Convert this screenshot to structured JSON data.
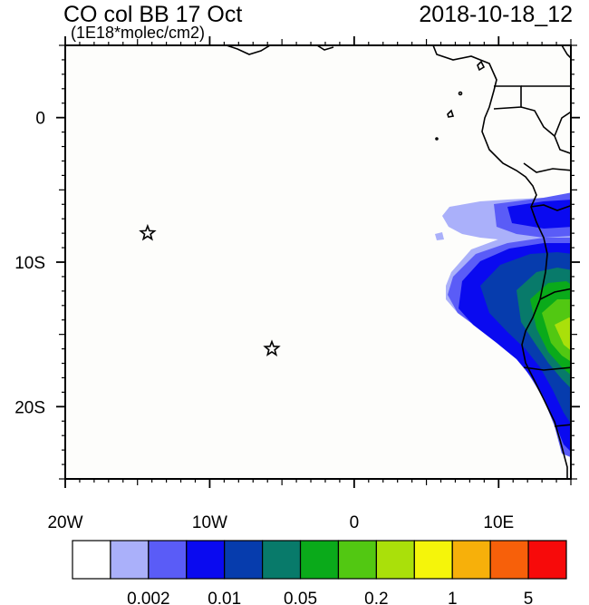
{
  "header": {
    "title": "CO col BB 17 Oct",
    "units": "(1E18*molec/cm2)",
    "timestamp": "2018-10-18_12"
  },
  "map": {
    "lon_range": [
      -20,
      15
    ],
    "lat_range": [
      -25,
      5
    ],
    "x_ticks": [
      {
        "value": -20,
        "label": "20W"
      },
      {
        "value": -10,
        "label": "10W"
      },
      {
        "value": 0,
        "label": "0"
      },
      {
        "value": 10,
        "label": "10E"
      }
    ],
    "y_ticks": [
      {
        "value": 0,
        "label": "0"
      },
      {
        "value": -10,
        "label": "10S"
      },
      {
        "value": -20,
        "label": "20S"
      }
    ],
    "markers": [
      {
        "name": "star-marker-1",
        "lon": -14.3,
        "lat": -8.0
      },
      {
        "name": "star-marker-2",
        "lon": -5.7,
        "lat": -16.0
      }
    ]
  },
  "colorbar": {
    "colors": [
      "#ffffff",
      "#aab0fa",
      "#5a5cf7",
      "#0a0af0",
      "#063cad",
      "#087a6a",
      "#0aaa1a",
      "#52c812",
      "#aae00a",
      "#f5f50a",
      "#f7b00a",
      "#f7600a",
      "#f70a0a"
    ],
    "labels": [
      "0.002",
      "0.01",
      "0.05",
      "0.2",
      "1",
      "5"
    ]
  }
}
